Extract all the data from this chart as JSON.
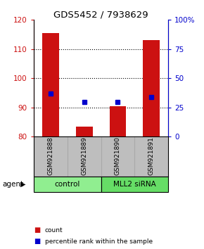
{
  "title": "GDS5452 / 7938629",
  "samples": [
    "GSM921888",
    "GSM921889",
    "GSM921890",
    "GSM921891"
  ],
  "bar_tops": [
    115.5,
    83.5,
    90.5,
    113.0
  ],
  "bar_bottom": 80,
  "blue_pct": [
    37,
    30,
    30,
    34
  ],
  "ylim_left": [
    80,
    120
  ],
  "ylim_right": [
    0,
    100
  ],
  "yticks_left": [
    80,
    90,
    100,
    110,
    120
  ],
  "yticks_right": [
    0,
    25,
    50,
    75,
    100
  ],
  "ytick_labels_right": [
    "0",
    "25",
    "50",
    "75",
    "100%"
  ],
  "grid_lines": [
    90,
    100,
    110
  ],
  "groups": [
    "control",
    "MLL2 siRNA"
  ],
  "group_colors": [
    "#90EE90",
    "#66DD66"
  ],
  "bar_color": "#CC1111",
  "blue_color": "#0000CC",
  "sample_bg_color": "#BEBEBE",
  "bar_width": 0.5,
  "legend_labels": [
    "count",
    "percentile rank within the sample"
  ]
}
